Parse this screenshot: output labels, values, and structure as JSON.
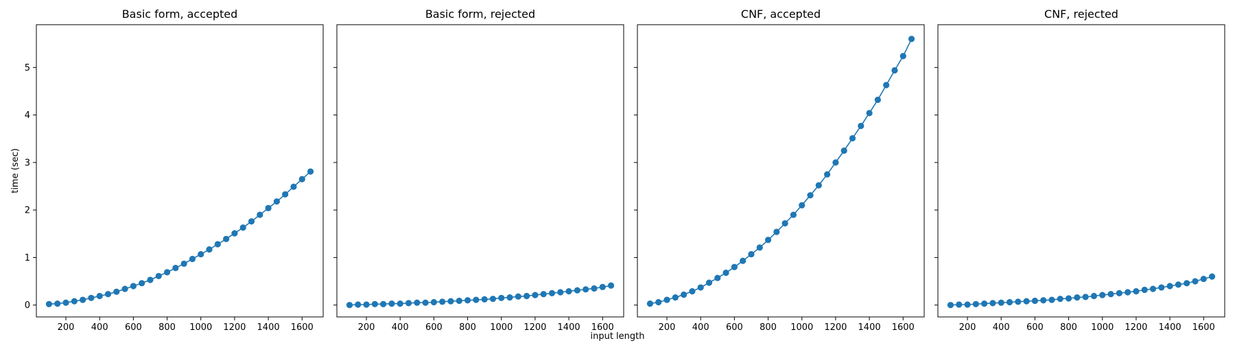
{
  "figure": {
    "xlabel": "input length",
    "ylabel": "time (sec)",
    "sharey": true
  },
  "chart_data": [
    {
      "type": "line",
      "title": "Basic form, accepted",
      "xlim": [
        25,
        1725
      ],
      "ylim": [
        -0.25,
        5.9
      ],
      "xticks": [
        200,
        400,
        600,
        800,
        1000,
        1200,
        1400,
        1600
      ],
      "yticks": [
        0,
        1,
        2,
        3,
        4,
        5
      ],
      "color": "#1f77b4",
      "x": [
        100,
        150,
        200,
        250,
        300,
        350,
        400,
        450,
        500,
        550,
        600,
        650,
        700,
        750,
        800,
        850,
        900,
        950,
        1000,
        1050,
        1100,
        1150,
        1200,
        1250,
        1300,
        1350,
        1400,
        1450,
        1500,
        1550,
        1600,
        1650
      ],
      "y": [
        0.02,
        0.03,
        0.05,
        0.08,
        0.11,
        0.15,
        0.19,
        0.23,
        0.28,
        0.34,
        0.4,
        0.46,
        0.53,
        0.61,
        0.69,
        0.78,
        0.87,
        0.97,
        1.07,
        1.17,
        1.28,
        1.39,
        1.51,
        1.63,
        1.76,
        1.9,
        2.04,
        2.18,
        2.33,
        2.49,
        2.65,
        2.81
      ]
    },
    {
      "type": "line",
      "title": "Basic form, rejected",
      "xlim": [
        25,
        1725
      ],
      "ylim": [
        -0.25,
        5.9
      ],
      "xticks": [
        200,
        400,
        600,
        800,
        1000,
        1200,
        1400,
        1600
      ],
      "yticks": [
        0,
        1,
        2,
        3,
        4,
        5
      ],
      "color": "#1f77b4",
      "x": [
        100,
        150,
        200,
        250,
        300,
        350,
        400,
        450,
        500,
        550,
        600,
        650,
        700,
        750,
        800,
        850,
        900,
        950,
        1000,
        1050,
        1100,
        1150,
        1200,
        1250,
        1300,
        1350,
        1400,
        1450,
        1500,
        1550,
        1600,
        1650
      ],
      "y": [
        0.0,
        0.01,
        0.01,
        0.02,
        0.02,
        0.03,
        0.03,
        0.04,
        0.05,
        0.05,
        0.06,
        0.07,
        0.08,
        0.09,
        0.1,
        0.11,
        0.12,
        0.13,
        0.15,
        0.16,
        0.18,
        0.19,
        0.21,
        0.23,
        0.25,
        0.27,
        0.29,
        0.31,
        0.33,
        0.35,
        0.38,
        0.41
      ]
    },
    {
      "type": "line",
      "title": "CNF, accepted",
      "xlim": [
        25,
        1725
      ],
      "ylim": [
        -0.25,
        5.9
      ],
      "xticks": [
        200,
        400,
        600,
        800,
        1000,
        1200,
        1400,
        1600
      ],
      "yticks": [
        0,
        1,
        2,
        3,
        4,
        5
      ],
      "color": "#1f77b4",
      "x": [
        100,
        150,
        200,
        250,
        300,
        350,
        400,
        450,
        500,
        550,
        600,
        650,
        700,
        750,
        800,
        850,
        900,
        950,
        1000,
        1050,
        1100,
        1150,
        1200,
        1250,
        1300,
        1350,
        1400,
        1450,
        1500,
        1550,
        1600,
        1650
      ],
      "y": [
        0.03,
        0.06,
        0.11,
        0.16,
        0.22,
        0.29,
        0.37,
        0.47,
        0.57,
        0.68,
        0.8,
        0.93,
        1.07,
        1.21,
        1.37,
        1.54,
        1.72,
        1.9,
        2.1,
        2.31,
        2.52,
        2.75,
        3.0,
        3.25,
        3.51,
        3.77,
        4.04,
        4.32,
        4.63,
        4.94,
        5.24,
        5.6
      ]
    },
    {
      "type": "line",
      "title": "CNF, rejected",
      "xlim": [
        25,
        1725
      ],
      "ylim": [
        -0.25,
        5.9
      ],
      "xticks": [
        200,
        400,
        600,
        800,
        1000,
        1200,
        1400,
        1600
      ],
      "yticks": [
        0,
        1,
        2,
        3,
        4,
        5
      ],
      "color": "#1f77b4",
      "x": [
        100,
        150,
        200,
        250,
        300,
        350,
        400,
        450,
        500,
        550,
        600,
        650,
        700,
        750,
        800,
        850,
        900,
        950,
        1000,
        1050,
        1100,
        1150,
        1200,
        1250,
        1300,
        1350,
        1400,
        1450,
        1500,
        1550,
        1600,
        1650
      ],
      "y": [
        0.0,
        0.01,
        0.01,
        0.02,
        0.03,
        0.04,
        0.05,
        0.06,
        0.07,
        0.08,
        0.09,
        0.1,
        0.11,
        0.13,
        0.14,
        0.16,
        0.17,
        0.19,
        0.21,
        0.23,
        0.25,
        0.27,
        0.29,
        0.32,
        0.34,
        0.37,
        0.4,
        0.43,
        0.46,
        0.5,
        0.55,
        0.6
      ]
    }
  ]
}
